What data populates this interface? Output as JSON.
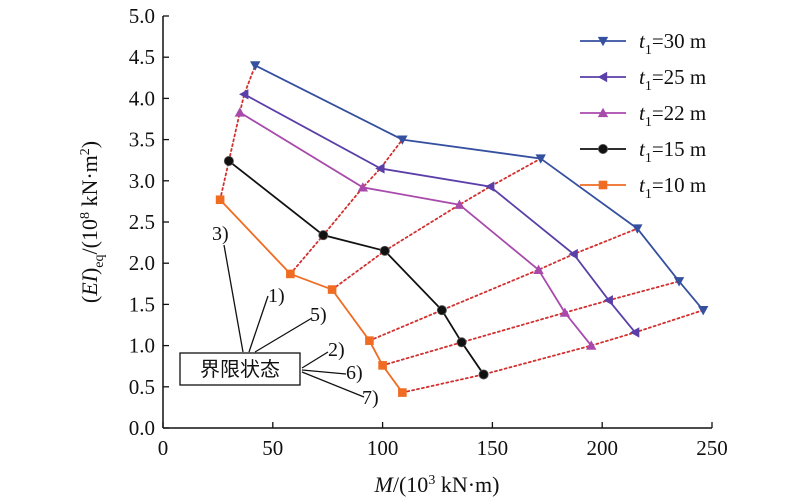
{
  "chart_data": {
    "type": "line",
    "xlabel": "M/(10³ kN·m)",
    "ylabel": "(EI)eq/(10⁸ kN·m²)",
    "xlim": [
      0,
      250
    ],
    "ylim": [
      0.0,
      5.0
    ],
    "xticks": [
      "0",
      "50",
      "100",
      "150",
      "200",
      "250"
    ],
    "yticks": [
      "0.0",
      "0.5",
      "1.0",
      "1.5",
      "2.0",
      "2.5",
      "3.0",
      "3.5",
      "4.0",
      "4.5",
      "5.0"
    ],
    "grid": false,
    "legend_position": "top-right",
    "series": [
      {
        "name": "t1=30 m",
        "label_main": "t",
        "label_sub": "1",
        "label_rest": "=30 m",
        "color": "#3650a0",
        "marker": "triangle-down",
        "x": [
          42,
          109,
          172,
          216,
          235,
          246
        ],
        "y": [
          4.4,
          3.5,
          3.27,
          2.42,
          1.78,
          1.43
        ]
      },
      {
        "name": "t1=25 m",
        "label_main": "t",
        "label_sub": "1",
        "label_rest": "=25 m",
        "color": "#5a3fa8",
        "marker": "triangle-left",
        "x": [
          37,
          99,
          149,
          187,
          203,
          215
        ],
        "y": [
          4.05,
          3.15,
          2.93,
          2.11,
          1.55,
          1.16
        ]
      },
      {
        "name": "t1=22 m",
        "label_main": "t",
        "label_sub": "1",
        "label_rest": "=22 m",
        "color": "#a84aab",
        "marker": "triangle-up",
        "x": [
          35,
          91,
          135,
          171,
          183,
          195
        ],
        "y": [
          3.83,
          2.92,
          2.71,
          1.92,
          1.4,
          1.0
        ]
      },
      {
        "name": "t1=15 m",
        "label_main": "t",
        "label_sub": "1",
        "label_rest": "=15 m",
        "color": "#111111",
        "marker": "circle",
        "x": [
          30,
          73,
          101,
          127,
          136,
          146
        ],
        "y": [
          3.24,
          2.34,
          2.15,
          1.43,
          1.04,
          0.65
        ]
      },
      {
        "name": "t1=10 m",
        "label_main": "t",
        "label_sub": "1",
        "label_rest": "=10 m",
        "color": "#ef6c22",
        "marker": "square",
        "x": [
          26,
          58,
          77,
          94,
          100,
          109
        ],
        "y": [
          2.77,
          1.87,
          1.68,
          1.06,
          0.76,
          0.43
        ]
      }
    ],
    "limit_state_lines": {
      "color": "#d23030",
      "style": "dotted",
      "paths": [
        [
          [
            26,
            2.77
          ],
          [
            30,
            3.24
          ],
          [
            35,
            3.83
          ],
          [
            37,
            4.05
          ],
          [
            42,
            4.4
          ]
        ],
        [
          [
            58,
            1.87
          ],
          [
            73,
            2.34
          ],
          [
            91,
            2.92
          ],
          [
            99,
            3.15
          ],
          [
            109,
            3.5
          ]
        ],
        [
          [
            77,
            1.68
          ],
          [
            101,
            2.15
          ],
          [
            135,
            2.71
          ],
          [
            149,
            2.93
          ],
          [
            172,
            3.27
          ]
        ],
        [
          [
            94,
            1.06
          ],
          [
            127,
            1.43
          ],
          [
            171,
            1.92
          ],
          [
            187,
            2.11
          ],
          [
            216,
            2.42
          ]
        ],
        [
          [
            100,
            0.76
          ],
          [
            136,
            1.04
          ],
          [
            183,
            1.4
          ],
          [
            203,
            1.55
          ],
          [
            235,
            1.78
          ]
        ],
        [
          [
            109,
            0.43
          ],
          [
            146,
            0.65
          ],
          [
            195,
            1.0
          ],
          [
            215,
            1.16
          ],
          [
            246,
            1.43
          ]
        ]
      ]
    },
    "annotations": [
      {
        "id": "a3",
        "text": "3)"
      },
      {
        "id": "a1",
        "text": "1)"
      },
      {
        "id": "a5",
        "text": "5)"
      },
      {
        "id": "a2",
        "text": "2)"
      },
      {
        "id": "a6",
        "text": "6)"
      },
      {
        "id": "a7",
        "text": "7)"
      }
    ],
    "box_label": "界限状态"
  }
}
